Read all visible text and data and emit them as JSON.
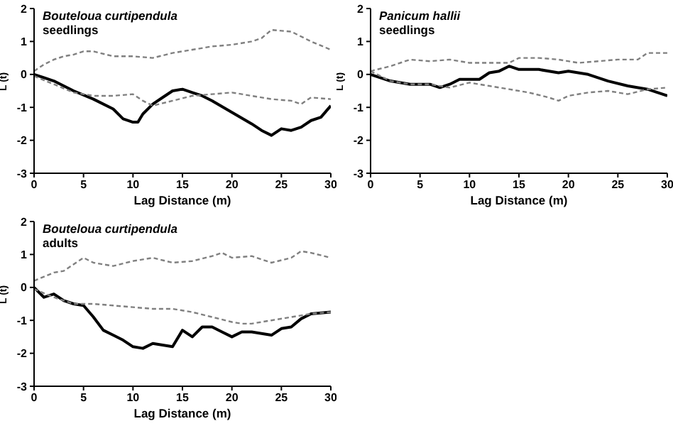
{
  "chart_data": [
    {
      "type": "line",
      "title": "Bouteloua curtipendula",
      "subtitle": "seedlings",
      "xlabel": "Lag Distance (m)",
      "ylabel": "L (t)",
      "xlim": [
        0,
        30
      ],
      "xticks": [
        0,
        5,
        10,
        15,
        20,
        25,
        30
      ],
      "ylim": [
        -3,
        2
      ],
      "yticks": [
        -3,
        -2,
        -1,
        0,
        1,
        2
      ],
      "grid": false,
      "marker": "none",
      "series": [
        {
          "color": "#000000",
          "line_style": "solid",
          "x": [
            0,
            1,
            2,
            4,
            6,
            8,
            9,
            10,
            10.5,
            11,
            12,
            13,
            14,
            15,
            16,
            17,
            18,
            20,
            22,
            23,
            24,
            25,
            26,
            27,
            28,
            29,
            30
          ],
          "values": [
            0,
            -0.1,
            -0.2,
            -0.5,
            -0.75,
            -1.05,
            -1.35,
            -1.45,
            -1.45,
            -1.2,
            -0.9,
            -0.7,
            -0.5,
            -0.45,
            -0.55,
            -0.65,
            -0.8,
            -1.15,
            -1.5,
            -1.7,
            -1.85,
            -1.65,
            -1.7,
            -1.6,
            -1.4,
            -1.3,
            -0.95
          ]
        },
        {
          "color": "#808080",
          "line_style": "dashed",
          "x": [
            0,
            1,
            2,
            3,
            4,
            5,
            6,
            8,
            10,
            12,
            14,
            16,
            18,
            20,
            22,
            23,
            24,
            26,
            28,
            30
          ],
          "values": [
            0.1,
            0.3,
            0.45,
            0.55,
            0.6,
            0.7,
            0.7,
            0.55,
            0.55,
            0.5,
            0.65,
            0.75,
            0.85,
            0.9,
            1.0,
            1.1,
            1.35,
            1.3,
            1.0,
            0.75
          ]
        },
        {
          "color": "#808080",
          "line_style": "dashed",
          "x": [
            0,
            2,
            4,
            6,
            8,
            10,
            11,
            12,
            14,
            16,
            18,
            20,
            22,
            24,
            26,
            27,
            28,
            30
          ],
          "values": [
            -0.05,
            -0.3,
            -0.55,
            -0.65,
            -0.65,
            -0.6,
            -0.8,
            -0.95,
            -0.8,
            -0.65,
            -0.6,
            -0.55,
            -0.65,
            -0.75,
            -0.8,
            -0.9,
            -0.7,
            -0.75
          ]
        }
      ]
    },
    {
      "type": "line",
      "title": "Panicum hallii",
      "subtitle": "seedlings",
      "xlabel": "Lag Distance (m)",
      "ylabel": "L (t)",
      "xlim": [
        0,
        30
      ],
      "xticks": [
        0,
        5,
        10,
        15,
        20,
        25,
        30
      ],
      "ylim": [
        -3,
        2
      ],
      "yticks": [
        -3,
        -2,
        -1,
        0,
        1,
        2
      ],
      "grid": false,
      "marker": "none",
      "series": [
        {
          "color": "#000000",
          "line_style": "solid",
          "x": [
            0,
            2,
            4,
            6,
            7,
            8,
            9,
            11,
            12,
            13,
            14,
            15,
            17,
            19,
            20,
            22,
            24,
            26,
            28,
            30
          ],
          "values": [
            0,
            -0.2,
            -0.3,
            -0.3,
            -0.4,
            -0.3,
            -0.15,
            -0.15,
            0.05,
            0.1,
            0.25,
            0.15,
            0.15,
            0.05,
            0.1,
            0,
            -0.2,
            -0.35,
            -0.45,
            -0.65
          ]
        },
        {
          "color": "#808080",
          "line_style": "dashed",
          "x": [
            0,
            2,
            4,
            6,
            8,
            10,
            12,
            14,
            15,
            17,
            19,
            21,
            23,
            25,
            27,
            28,
            30
          ],
          "values": [
            0.1,
            0.25,
            0.45,
            0.4,
            0.45,
            0.35,
            0.35,
            0.35,
            0.5,
            0.5,
            0.45,
            0.35,
            0.4,
            0.45,
            0.45,
            0.65,
            0.65
          ]
        },
        {
          "color": "#808080",
          "line_style": "dashed",
          "x": [
            0,
            2,
            4,
            6,
            8,
            10,
            12,
            14,
            16,
            18,
            19,
            20,
            22,
            24,
            26,
            28,
            30
          ],
          "values": [
            0.1,
            -0.2,
            -0.3,
            -0.3,
            -0.4,
            -0.25,
            -0.35,
            -0.45,
            -0.55,
            -0.7,
            -0.8,
            -0.65,
            -0.55,
            -0.5,
            -0.6,
            -0.45,
            -0.4
          ]
        }
      ]
    },
    {
      "type": "line",
      "title": "Bouteloua curtipendula",
      "subtitle": "adults",
      "xlabel": "Lag Distance (m)",
      "ylabel": "L (t)",
      "xlim": [
        0,
        30
      ],
      "xticks": [
        0,
        5,
        10,
        15,
        20,
        25,
        30
      ],
      "ylim": [
        -3,
        2
      ],
      "yticks": [
        -3,
        -2,
        -1,
        0,
        1,
        2
      ],
      "grid": false,
      "marker": "none",
      "series": [
        {
          "color": "#000000",
          "line_style": "solid",
          "x": [
            0,
            1,
            2,
            3,
            4,
            5,
            6,
            7,
            8,
            9,
            10,
            11,
            12,
            13,
            14,
            15,
            16,
            17,
            18,
            19,
            20,
            21,
            22,
            24,
            25,
            26,
            27,
            28,
            30
          ],
          "values": [
            0,
            -0.3,
            -0.2,
            -0.4,
            -0.5,
            -0.55,
            -0.9,
            -1.3,
            -1.45,
            -1.6,
            -1.8,
            -1.85,
            -1.7,
            -1.75,
            -1.8,
            -1.3,
            -1.5,
            -1.2,
            -1.2,
            -1.35,
            -1.5,
            -1.35,
            -1.35,
            -1.45,
            -1.25,
            -1.2,
            -0.95,
            -0.8,
            -0.75
          ]
        },
        {
          "color": "#808080",
          "line_style": "dashed",
          "x": [
            0,
            2,
            3,
            4,
            5,
            6,
            8,
            10,
            12,
            14,
            16,
            18,
            19,
            20,
            22,
            24,
            26,
            27,
            28,
            30
          ],
          "values": [
            0.2,
            0.45,
            0.5,
            0.7,
            0.9,
            0.75,
            0.65,
            0.8,
            0.9,
            0.75,
            0.8,
            0.95,
            1.05,
            0.9,
            0.95,
            0.75,
            0.9,
            1.1,
            1.05,
            0.9
          ]
        },
        {
          "color": "#808080",
          "line_style": "dashed",
          "x": [
            0,
            2,
            4,
            6,
            8,
            10,
            12,
            14,
            16,
            18,
            20,
            21,
            22,
            24,
            26,
            28,
            30
          ],
          "values": [
            -0.05,
            -0.3,
            -0.5,
            -0.5,
            -0.55,
            -0.6,
            -0.65,
            -0.65,
            -0.75,
            -0.9,
            -1.05,
            -1.1,
            -1.1,
            -1.0,
            -0.9,
            -0.8,
            -0.75
          ]
        }
      ]
    }
  ]
}
